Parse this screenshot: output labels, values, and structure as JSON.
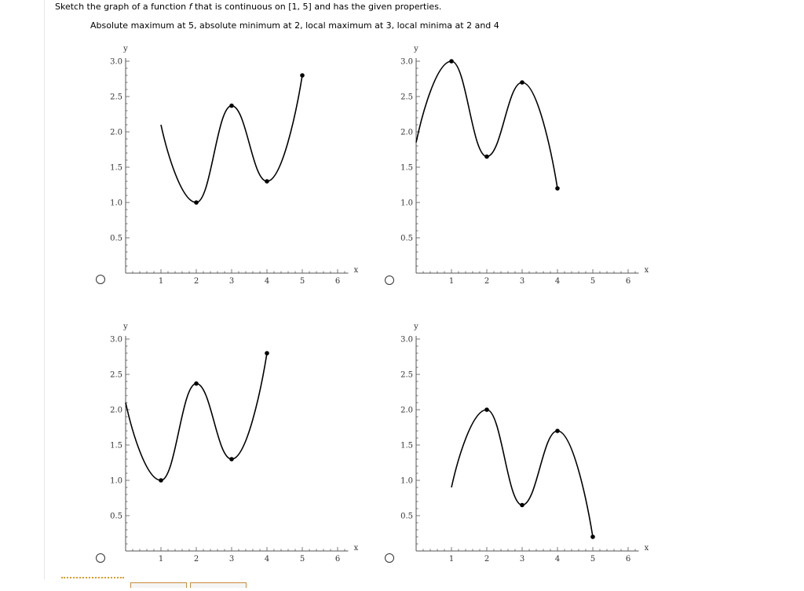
{
  "question": {
    "prefix": "Sketch the graph of a function ",
    "fvar": "f",
    "suffix": " that is continuous on [1, 5] and has the given properties."
  },
  "properties": "Absolute maximum at 5, absolute minimum at 2, local maximum at 3, local minima at 2 and 4",
  "chart_data": [
    {
      "type": "line",
      "xlabel": "x",
      "ylabel": "y",
      "xlim": [
        0,
        6.3
      ],
      "ylim": [
        0,
        3.0
      ],
      "x_ticks": [
        1,
        2,
        3,
        4,
        5,
        6
      ],
      "y_ticks": [
        0.5,
        1.0,
        1.5,
        2.0,
        2.5,
        3.0
      ],
      "x_tick_labels": [
        "1",
        "2",
        "3",
        "4",
        "5",
        "6"
      ],
      "y_tick_labels": [
        "0.5",
        "1.0",
        "1.5",
        "2.0",
        "2.5",
        "3.0"
      ],
      "series": [
        {
          "x": [
            1,
            2,
            3,
            4,
            5
          ],
          "y": [
            2.1,
            1.0,
            2.37,
            1.3,
            2.8
          ]
        }
      ],
      "marked_points": [
        [
          2,
          1.0
        ],
        [
          3,
          2.37
        ],
        [
          4,
          1.3
        ],
        [
          5,
          2.8
        ]
      ]
    },
    {
      "type": "line",
      "xlabel": "x",
      "ylabel": "y",
      "xlim": [
        0,
        6.3
      ],
      "ylim": [
        0,
        3.0
      ],
      "x_ticks": [
        1,
        2,
        3,
        4,
        5,
        6
      ],
      "y_ticks": [
        0.5,
        1.0,
        1.5,
        2.0,
        2.5,
        3.0
      ],
      "x_tick_labels": [
        "1",
        "2",
        "3",
        "4",
        "5",
        "6"
      ],
      "y_tick_labels": [
        "0.5",
        "1.0",
        "1.5",
        "2.0",
        "2.5",
        "3.0"
      ],
      "series": [
        {
          "x": [
            0,
            1,
            2,
            3,
            4
          ],
          "y": [
            1.85,
            3.0,
            1.65,
            2.7,
            1.2
          ]
        }
      ],
      "marked_points": [
        [
          1,
          3.0
        ],
        [
          2,
          1.65
        ],
        [
          3,
          2.7
        ],
        [
          4,
          1.2
        ]
      ]
    },
    {
      "type": "line",
      "xlabel": "x",
      "ylabel": "y",
      "xlim": [
        0,
        6.3
      ],
      "ylim": [
        0,
        3.0
      ],
      "x_ticks": [
        1,
        2,
        3,
        4,
        5,
        6
      ],
      "y_ticks": [
        0.5,
        1.0,
        1.5,
        2.0,
        2.5,
        3.0
      ],
      "x_tick_labels": [
        "1",
        "2",
        "3",
        "4",
        "5",
        "6"
      ],
      "y_tick_labels": [
        "0.5",
        "1.0",
        "1.5",
        "2.0",
        "2.5",
        "3.0"
      ],
      "series": [
        {
          "x": [
            0,
            1,
            2,
            3,
            4
          ],
          "y": [
            2.1,
            1.0,
            2.37,
            1.3,
            2.8
          ]
        }
      ],
      "marked_points": [
        [
          1,
          1.0
        ],
        [
          2,
          2.37
        ],
        [
          3,
          1.3
        ],
        [
          4,
          2.8
        ]
      ]
    },
    {
      "type": "line",
      "xlabel": "x",
      "ylabel": "y",
      "xlim": [
        0,
        6.3
      ],
      "ylim": [
        0,
        3.0
      ],
      "x_ticks": [
        1,
        2,
        3,
        4,
        5,
        6
      ],
      "y_ticks": [
        0.5,
        1.0,
        1.5,
        2.0,
        2.5,
        3.0
      ],
      "x_tick_labels": [
        "1",
        "2",
        "3",
        "4",
        "5",
        "6"
      ],
      "y_tick_labels": [
        "0.5",
        "1.0",
        "1.5",
        "2.0",
        "2.5",
        "3.0"
      ],
      "series": [
        {
          "x": [
            1,
            2,
            3,
            4,
            5
          ],
          "y": [
            0.9,
            2.0,
            0.65,
            1.7,
            0.2
          ]
        }
      ],
      "marked_points": [
        [
          2,
          2.0
        ],
        [
          3,
          0.65
        ],
        [
          4,
          1.7
        ],
        [
          5,
          0.2
        ]
      ]
    }
  ]
}
